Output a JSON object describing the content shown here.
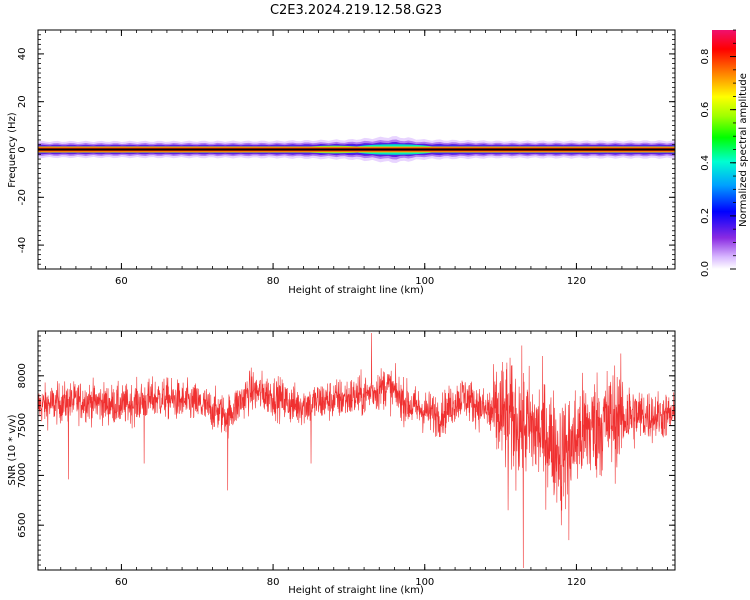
{
  "title": "C2E3.2024.219.12.58.G23",
  "chart_data": [
    {
      "type": "heatmap",
      "xlabel": "Height of straight line (km)",
      "ylabel": "Frequency (Hz)",
      "xlim": [
        49,
        133
      ],
      "ylim": [
        -50,
        50
      ],
      "xticks": [
        60,
        80,
        100,
        120
      ],
      "yticks": [
        -40,
        -20,
        0,
        20,
        40
      ],
      "colorbar": {
        "label": "Normalized spectral amplitude",
        "range": [
          0,
          0.9
        ],
        "ticks": [
          0.0,
          0.2,
          0.4,
          0.6,
          0.8
        ]
      },
      "band": {
        "center_frequency": 0,
        "halfwidth_profile": [
          {
            "x": 49,
            "hw": 2.5
          },
          {
            "x": 60,
            "hw": 2.5
          },
          {
            "x": 80,
            "hw": 2.6
          },
          {
            "x": 90,
            "hw": 3.0
          },
          {
            "x": 96,
            "hw": 4.0
          },
          {
            "x": 100,
            "hw": 3.0
          },
          {
            "x": 110,
            "hw": 2.6
          },
          {
            "x": 133,
            "hw": 2.7
          }
        ],
        "peak_amplitude": 0.9,
        "secondary_peak": {
          "x": 96,
          "amplitude": 0.45
        }
      }
    },
    {
      "type": "line",
      "xlabel": "Height of straight line (km)",
      "ylabel": "SNR (10 * v/v)",
      "xlim": [
        49,
        133
      ],
      "ylim": [
        6050,
        8450
      ],
      "xticks": [
        60,
        80,
        100,
        120
      ],
      "yticks": [
        6500,
        7000,
        7500,
        8000
      ],
      "series": [
        {
          "color": "#f03030",
          "mean_profile": [
            {
              "x": 49,
              "y": 7700
            },
            {
              "x": 55,
              "y": 7750
            },
            {
              "x": 60,
              "y": 7700
            },
            {
              "x": 65,
              "y": 7780
            },
            {
              "x": 70,
              "y": 7720
            },
            {
              "x": 74,
              "y": 7600
            },
            {
              "x": 77,
              "y": 7850
            },
            {
              "x": 80,
              "y": 7800
            },
            {
              "x": 83,
              "y": 7700
            },
            {
              "x": 87,
              "y": 7750
            },
            {
              "x": 92,
              "y": 7800
            },
            {
              "x": 95,
              "y": 7900
            },
            {
              "x": 98,
              "y": 7700
            },
            {
              "x": 102,
              "y": 7600
            },
            {
              "x": 105,
              "y": 7800
            },
            {
              "x": 108,
              "y": 7650
            },
            {
              "x": 112,
              "y": 7550
            },
            {
              "x": 116,
              "y": 7400
            },
            {
              "x": 118,
              "y": 7200
            },
            {
              "x": 121,
              "y": 7450
            },
            {
              "x": 126,
              "y": 7600
            },
            {
              "x": 133,
              "y": 7600
            }
          ],
          "noise_profile": [
            {
              "x": 49,
              "amp": 140
            },
            {
              "x": 108,
              "amp": 150
            },
            {
              "x": 110,
              "amp": 400
            },
            {
              "x": 125,
              "amp": 380
            },
            {
              "x": 128,
              "amp": 200
            },
            {
              "x": 133,
              "amp": 150
            }
          ],
          "spikes": [
            {
              "x": 53,
              "y": 6960
            },
            {
              "x": 63,
              "y": 7120
            },
            {
              "x": 74,
              "y": 6850
            },
            {
              "x": 85,
              "y": 7120
            },
            {
              "x": 93,
              "y": 8430
            },
            {
              "x": 111,
              "y": 6650
            },
            {
              "x": 113,
              "y": 6070
            },
            {
              "x": 118,
              "y": 6500
            },
            {
              "x": 119,
              "y": 6350
            }
          ]
        }
      ]
    }
  ]
}
